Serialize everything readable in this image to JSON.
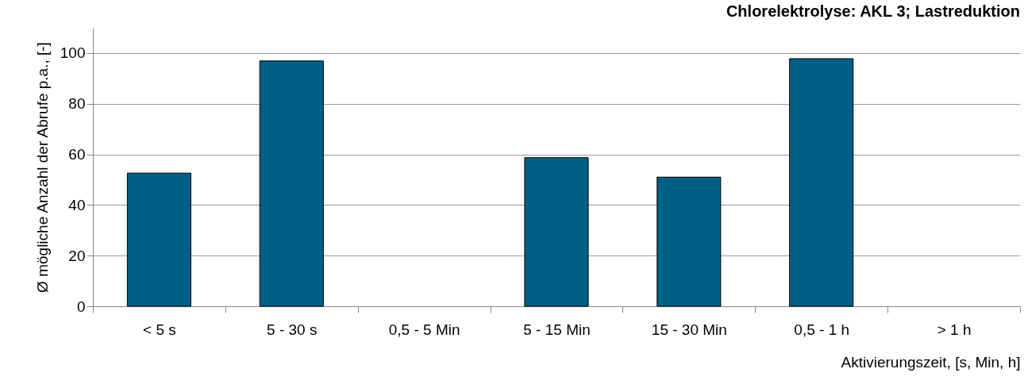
{
  "chart_data": {
    "type": "bar",
    "title": "Chlorelektrolyse: AKL 3; Lastreduktion",
    "xlabel": "Aktivierungszeit, [s, Min, h]",
    "ylabel": "Ø mögliche Anzahl der Abrufe p.a., [-]",
    "categories": [
      "< 5 s",
      "5 - 30 s",
      "0,5 - 5 Min",
      "5 - 15 Min",
      "15 - 30 Min",
      "0,5 - 1 h",
      "> 1 h"
    ],
    "values": [
      52.6,
      96.9,
      null,
      58.7,
      51.0,
      97.8,
      null
    ],
    "color": "#005f87",
    "ylim": [
      0,
      110
    ],
    "yticks": [
      0,
      20,
      40,
      60,
      80,
      100
    ],
    "grid": "y"
  }
}
